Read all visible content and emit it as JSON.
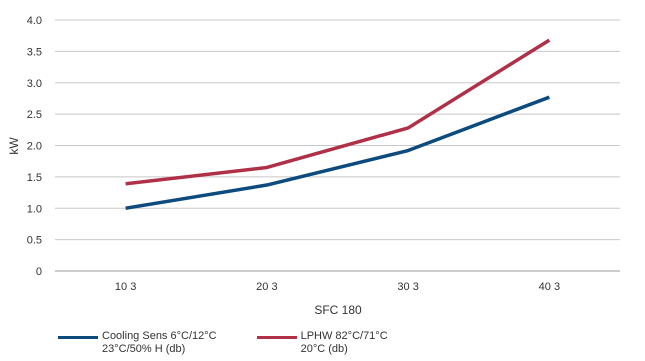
{
  "chart_data": {
    "type": "line",
    "categories": [
      "10 3",
      "20 3",
      "30 3",
      "40 3"
    ],
    "series": [
      {
        "name": "Cooling Sens 6°C/12°C\n23°C/50% H (db)",
        "values": [
          1.0,
          1.37,
          1.92,
          2.77
        ],
        "color": "#0d4a7e"
      },
      {
        "name": "LPHW 82°C/71°C\n20°C (db)",
        "values": [
          1.39,
          1.65,
          2.28,
          3.68
        ],
        "color": "#b03047"
      }
    ],
    "xlabel": "SFC 180",
    "ylabel": "kW",
    "ylim": [
      0,
      4.0
    ],
    "yticks": [
      "0",
      "0.5",
      "1.0",
      "1.5",
      "2.0",
      "2.5",
      "3.0",
      "3.5",
      "4.0"
    ],
    "grid": true,
    "legend_position": "bottom-left"
  }
}
